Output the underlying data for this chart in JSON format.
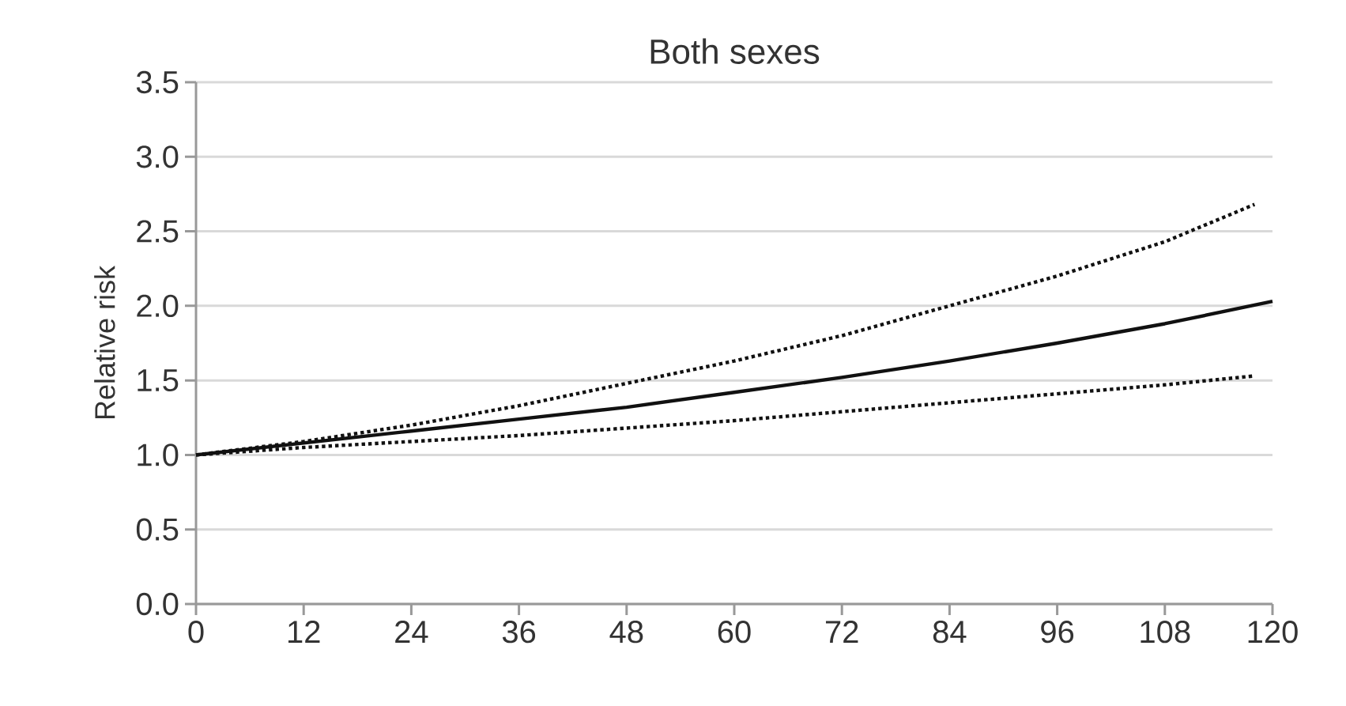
{
  "chart_data": {
    "type": "line",
    "title": "Both sexes",
    "ylabel": "Relative risk",
    "xlim": [
      0,
      120
    ],
    "xticks": [
      0,
      12,
      24,
      36,
      48,
      60,
      72,
      84,
      96,
      108,
      120
    ],
    "ylim": [
      0,
      3.5
    ],
    "yticks": [
      {
        "value": 0,
        "label": "0.0"
      },
      {
        "value": 0.5,
        "label": "0.5"
      },
      {
        "value": 1,
        "label": "1.0"
      },
      {
        "value": 1.5,
        "label": "1.5"
      },
      {
        "value": 2,
        "label": "2.0"
      },
      {
        "value": 2.5,
        "label": "2.5"
      },
      {
        "value": 3,
        "label": "3.0"
      },
      {
        "value": 3.5,
        "label": "3.5"
      }
    ],
    "grid": "y",
    "marker": "none",
    "series": [
      {
        "color": "#111111",
        "line_style": "solid",
        "x": [
          0,
          12,
          24,
          36,
          48,
          60,
          72,
          84,
          96,
          108,
          120
        ],
        "values": [
          1.0,
          1.08,
          1.16,
          1.24,
          1.32,
          1.42,
          1.52,
          1.63,
          1.75,
          1.88,
          2.03
        ]
      },
      {
        "color": "#111111",
        "line_style": "dotted",
        "x": [
          0,
          12,
          24,
          36,
          48,
          60,
          72,
          84,
          96,
          108,
          118
        ],
        "values": [
          1.0,
          1.09,
          1.2,
          1.33,
          1.48,
          1.63,
          1.8,
          2.0,
          2.2,
          2.43,
          2.68
        ]
      },
      {
        "color": "#111111",
        "line_style": "dotted",
        "x": [
          0,
          12,
          24,
          36,
          48,
          60,
          72,
          84,
          96,
          108,
          118
        ],
        "values": [
          1.0,
          1.05,
          1.09,
          1.13,
          1.18,
          1.23,
          1.29,
          1.35,
          1.41,
          1.47,
          1.53
        ]
      }
    ]
  }
}
